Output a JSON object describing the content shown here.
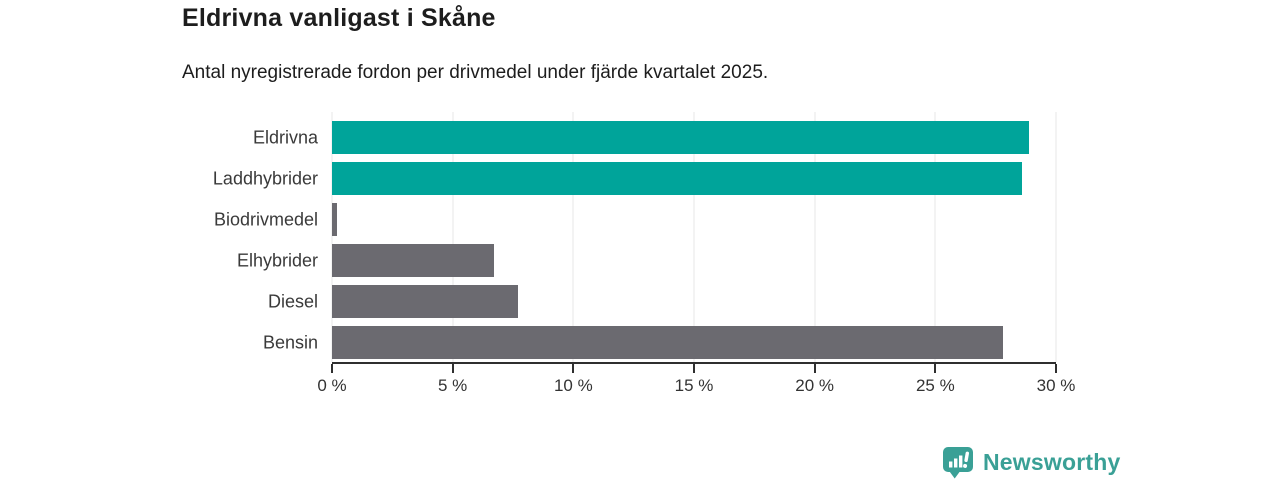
{
  "chart_data": {
    "type": "bar",
    "orientation": "horizontal",
    "title": "Eldrivna vanligast i Skåne",
    "subtitle": "Antal nyregistrerade fordon per drivmedel under fjärde kvartalet 2025.",
    "categories": [
      "Eldrivna",
      "Laddhybrider",
      "Biodrivmedel",
      "Elhybrider",
      "Diesel",
      "Bensin"
    ],
    "values": [
      28.9,
      28.6,
      0.2,
      6.7,
      7.7,
      27.8
    ],
    "unit": "%",
    "xlim": [
      0,
      30
    ],
    "x_ticks": [
      {
        "value": 0,
        "label": "0 %"
      },
      {
        "value": 5,
        "label": "5 %"
      },
      {
        "value": 10,
        "label": "10 %"
      },
      {
        "value": 15,
        "label": "15 %"
      },
      {
        "value": 20,
        "label": "20 %"
      },
      {
        "value": 25,
        "label": "25 %"
      },
      {
        "value": 30,
        "label": "30 %"
      }
    ],
    "bar_colors": [
      "#00a49a",
      "#00a49a",
      "#6b6a70",
      "#6b6a70",
      "#6b6a70",
      "#6b6a70"
    ],
    "highlight_color": "#00a49a",
    "default_color": "#6b6a70",
    "grid": true,
    "gridline_color": "#e7e7e7",
    "legend": "none"
  },
  "branding": {
    "name": "Newsworthy",
    "color": "#3aa096",
    "icon": "speech-bubble-bar-chart-exclamation"
  }
}
